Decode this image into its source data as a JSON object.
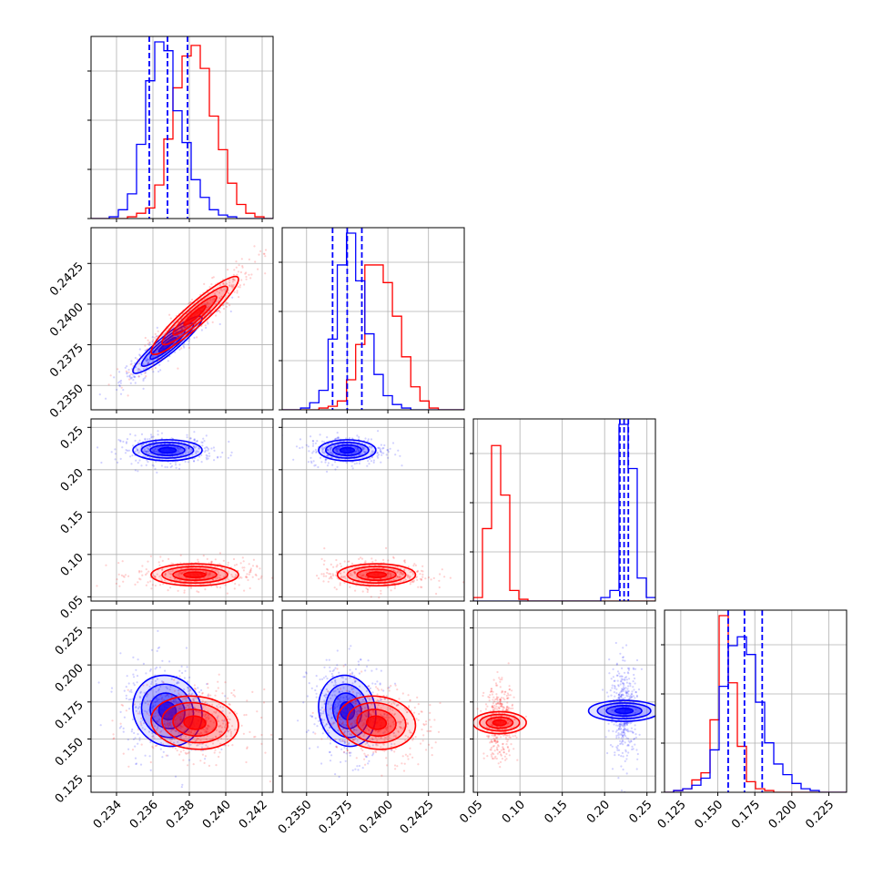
{
  "chart_data": {
    "type": "scatter",
    "figure_kind": "corner-plot",
    "grid": true,
    "series": [
      {
        "name": "",
        "color": "#0000ff"
      },
      {
        "name": "",
        "color": "#ff0000"
      }
    ],
    "parameters": [
      {
        "id": "p1",
        "range": [
          0.2326,
          0.2426
        ],
        "ticks": [
          0.234,
          0.236,
          0.238,
          0.24,
          0.242
        ],
        "tick_labels": [
          "0.234",
          "0.236",
          "0.238",
          "0.240",
          "0.242"
        ],
        "quantiles_blue": [
          0.2358,
          0.2368,
          0.2379
        ]
      },
      {
        "id": "p2",
        "range": [
          0.2335,
          0.2447
        ],
        "ticks": [
          0.235,
          0.2375,
          0.24,
          0.2425
        ],
        "tick_labels": [
          "0.2350",
          "0.2375",
          "0.2400",
          "0.2425"
        ],
        "quantiles_blue": [
          0.2366,
          0.2375,
          0.2384
        ]
      },
      {
        "id": "p3",
        "range": [
          0.045,
          0.26
        ],
        "ticks": [
          0.05,
          0.1,
          0.15,
          0.2,
          0.25
        ],
        "tick_labels": [
          "0.05",
          "0.10",
          "0.15",
          "0.20",
          "0.25"
        ],
        "quantiles_blue": [
          0.218,
          0.223,
          0.228
        ]
      },
      {
        "id": "p4",
        "range": [
          0.114,
          0.237
        ],
        "ticks": [
          0.125,
          0.15,
          0.175,
          0.2,
          0.225
        ],
        "tick_labels": [
          "0.125",
          "0.150",
          "0.175",
          "0.200",
          "0.225"
        ],
        "quantiles_blue": [
          0.157,
          0.168,
          0.18
        ]
      }
    ],
    "histograms": [
      {
        "param": "p1",
        "bin_edges": [
          0.2326,
          0.2331,
          0.2336,
          0.2341,
          0.2346,
          0.2351,
          0.2356,
          0.2361,
          0.2366,
          0.2371,
          0.2376,
          0.2381,
          0.2386,
          0.2391,
          0.2396,
          0.2401,
          0.2406,
          0.2411,
          0.2416,
          0.2421,
          0.2426
        ],
        "blue": [
          0,
          0,
          0.01,
          0.05,
          0.14,
          0.42,
          0.78,
          1.0,
          0.95,
          0.61,
          0.43,
          0.22,
          0.12,
          0.05,
          0.02,
          0.01,
          0,
          0,
          0,
          0
        ],
        "red": [
          0,
          0,
          0,
          0,
          0.01,
          0.03,
          0.06,
          0.19,
          0.45,
          0.74,
          0.92,
          0.98,
          0.85,
          0.58,
          0.39,
          0.2,
          0.08,
          0.03,
          0.01,
          0
        ]
      },
      {
        "param": "p2",
        "bin_edges": [
          0.2335,
          0.234065,
          0.23463,
          0.235195,
          0.23576,
          0.236325,
          0.23689,
          0.237455,
          0.23802,
          0.238585,
          0.23915,
          0.239715,
          0.24028,
          0.240845,
          0.24141,
          0.241975,
          0.24254,
          0.243105,
          0.24367,
          0.244235,
          0.2447
        ],
        "blue": [
          0,
          0,
          0.01,
          0.04,
          0.11,
          0.4,
          0.82,
          1.0,
          0.73,
          0.43,
          0.2,
          0.08,
          0.03,
          0.01,
          0,
          0,
          0,
          0,
          0,
          0
        ],
        "red": [
          0,
          0,
          0,
          0,
          0.01,
          0.02,
          0.05,
          0.17,
          0.37,
          0.82,
          0.82,
          0.72,
          0.53,
          0.3,
          0.13,
          0.05,
          0.01,
          0,
          0,
          0
        ]
      },
      {
        "param": "p3",
        "bin_edges": [
          0.045,
          0.05575,
          0.0665,
          0.07725,
          0.088,
          0.09875,
          0.1095,
          0.12025,
          0.131,
          0.14175,
          0.1525,
          0.16325,
          0.174,
          0.18475,
          0.1955,
          0.20625,
          0.217,
          0.22775,
          0.2385,
          0.24925,
          0.26
        ],
        "blue": [
          0,
          0,
          0,
          0,
          0,
          0,
          0,
          0,
          0,
          0,
          0,
          0,
          0,
          0,
          0.02,
          0.06,
          1.0,
          0.75,
          0.13,
          0.02
        ],
        "red": [
          0.02,
          0.41,
          0.88,
          0.6,
          0.06,
          0.01,
          0,
          0,
          0,
          0,
          0,
          0,
          0,
          0,
          0,
          0,
          0,
          0,
          0,
          0
        ]
      },
      {
        "param": "p4",
        "bin_edges": [
          0.114,
          0.12015,
          0.1263,
          0.13245,
          0.1386,
          0.14475,
          0.1509,
          0.15705,
          0.1632,
          0.16935,
          0.1755,
          0.18165,
          0.1878,
          0.19395,
          0.2001,
          0.20625,
          0.2124,
          0.21855,
          0.2247,
          0.23085,
          0.237
        ],
        "blue": [
          0,
          0.01,
          0.02,
          0.04,
          0.08,
          0.24,
          0.6,
          0.83,
          0.88,
          0.78,
          0.51,
          0.28,
          0.16,
          0.1,
          0.05,
          0.02,
          0.01,
          0,
          0,
          0
        ],
        "red": [
          0,
          0.01,
          0.02,
          0.07,
          0.11,
          0.41,
          1.0,
          0.62,
          0.26,
          0.06,
          0.02,
          0.01,
          0,
          0,
          0,
          0,
          0,
          0,
          0,
          0
        ]
      }
    ],
    "scatter_panels": [
      {
        "x": "p1",
        "y": "p2",
        "blue": {
          "mean": [
            0.2368,
            0.2375
          ],
          "sd": [
            0.00095,
            0.00088
          ],
          "rho": 0.92
        },
        "red": {
          "mean": [
            0.2383,
            0.2393
          ],
          "sd": [
            0.0012,
            0.0012
          ],
          "rho": 0.93
        }
      },
      {
        "x": "p1",
        "y": "p3",
        "blue": {
          "mean": [
            0.2368,
            0.223
          ],
          "sd": [
            0.00095,
            0.0062
          ],
          "rho": 0.0
        },
        "red": {
          "mean": [
            0.2383,
            0.076
          ],
          "sd": [
            0.0012,
            0.0065
          ],
          "rho": 0.0
        }
      },
      {
        "x": "p2",
        "y": "p3",
        "blue": {
          "mean": [
            0.2375,
            0.223
          ],
          "sd": [
            0.00088,
            0.0062
          ],
          "rho": 0.0
        },
        "red": {
          "mean": [
            0.2393,
            0.076
          ],
          "sd": [
            0.0012,
            0.0065
          ],
          "rho": 0.0
        }
      },
      {
        "x": "p1",
        "y": "p4",
        "blue": {
          "mean": [
            0.2368,
            0.169
          ],
          "sd": [
            0.00095,
            0.012
          ],
          "rho": -0.1
        },
        "red": {
          "mean": [
            0.2383,
            0.161
          ],
          "sd": [
            0.0012,
            0.009
          ],
          "rho": -0.1
        }
      },
      {
        "x": "p2",
        "y": "p4",
        "blue": {
          "mean": [
            0.2375,
            0.169
          ],
          "sd": [
            0.00088,
            0.012
          ],
          "rho": -0.1
        },
        "red": {
          "mean": [
            0.2393,
            0.161
          ],
          "sd": [
            0.0012,
            0.009
          ],
          "rho": -0.1
        }
      },
      {
        "x": "p3",
        "y": "p4",
        "blue": {
          "mean": [
            0.223,
            0.169
          ],
          "sd": [
            0.0062,
            0.012
          ],
          "rho": 0.0
        },
        "red": {
          "mean": [
            0.076,
            0.161
          ],
          "sd": [
            0.0065,
            0.009
          ],
          "rho": 0.0
        }
      }
    ]
  }
}
